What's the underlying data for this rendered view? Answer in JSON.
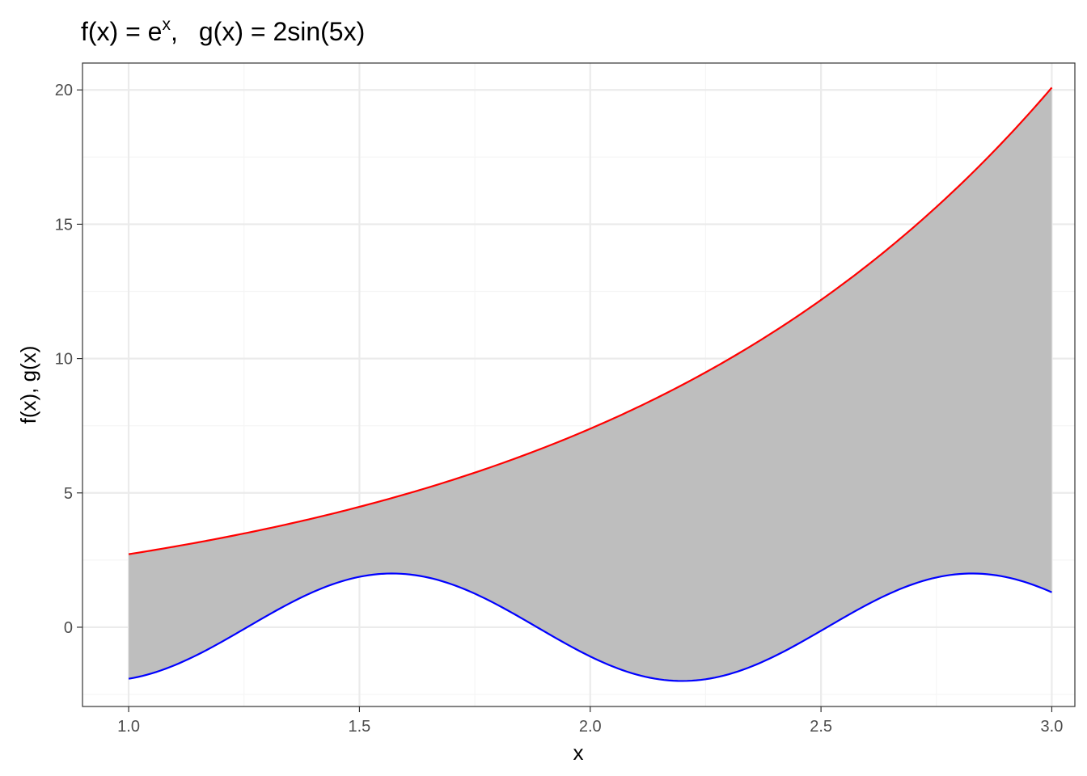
{
  "chart_data": {
    "type": "area",
    "title": {
      "f_part": "f(x) = e",
      "f_sup": "x",
      "sep": ",",
      "g_part": "g(x) = 2sin(5x)"
    },
    "xlabel": "x",
    "ylabel": "f(x), g(x)",
    "xlim": [
      0.9,
      3.05
    ],
    "ylim": [
      -2.95,
      21.0
    ],
    "x_ticks": [
      1.0,
      1.5,
      2.0,
      2.5,
      3.0
    ],
    "x_tick_labels": [
      "1.0",
      "1.5",
      "2.0",
      "2.5",
      "3.0"
    ],
    "y_ticks": [
      0,
      5,
      10,
      15,
      20
    ],
    "y_tick_labels": [
      "0",
      "5",
      "10",
      "15",
      "20"
    ],
    "x_minor_ticks": [
      1.25,
      1.75,
      2.25,
      2.75
    ],
    "y_minor_ticks": [
      -2.5,
      2.5,
      7.5,
      12.5,
      17.5
    ],
    "grid": true,
    "colors": {
      "f": "#ff0000",
      "g": "#0000ff",
      "fill": "#bebebe",
      "grid_major": "#ebebeb",
      "grid_minor": "#f5f5f5",
      "border": "#333333"
    },
    "x": [
      1.0,
      1.1,
      1.2,
      1.3,
      1.4,
      1.5,
      1.6,
      1.7,
      1.8,
      1.9,
      2.0,
      2.1,
      2.2,
      2.3,
      2.4,
      2.5,
      2.6,
      2.7,
      2.8,
      2.9,
      3.0
    ],
    "series": [
      {
        "function": "f",
        "values": [
          2.72,
          3.0,
          3.32,
          3.67,
          4.06,
          4.48,
          4.95,
          5.47,
          6.05,
          6.69,
          7.39,
          8.17,
          9.03,
          9.97,
          11.02,
          12.18,
          13.46,
          14.88,
          16.44,
          18.17,
          20.09
        ]
      },
      {
        "function": "g",
        "values": [
          -1.92,
          -1.41,
          -0.56,
          0.43,
          1.31,
          1.88,
          1.98,
          1.6,
          0.82,
          -0.15,
          -1.09,
          -1.73,
          -2.0,
          -1.83,
          -1.27,
          -0.27,
          0.7,
          1.51,
          1.98,
          1.86,
          1.3
        ]
      }
    ]
  }
}
